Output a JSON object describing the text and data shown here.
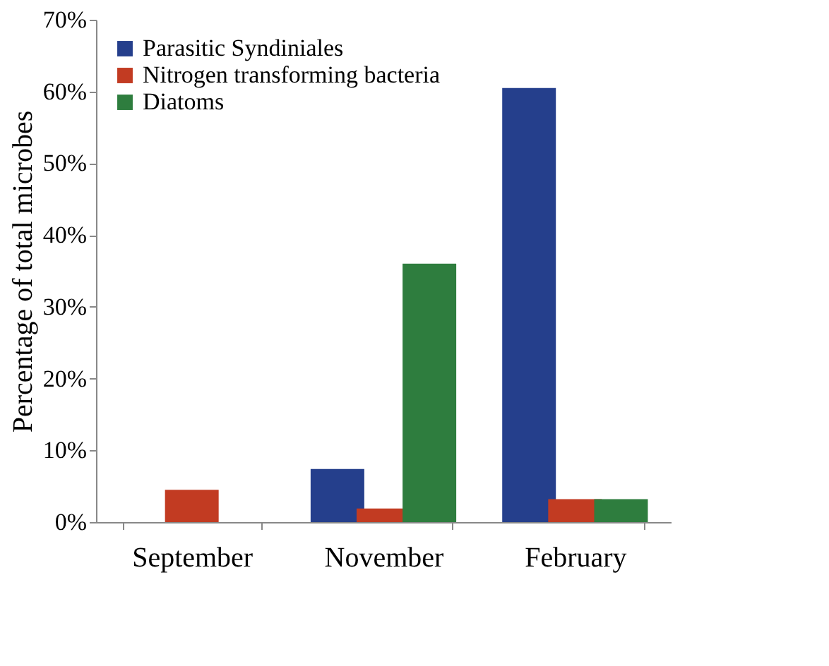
{
  "chart_data": {
    "type": "bar",
    "ylabel": "Percentage of total microbes",
    "categories": [
      "September",
      "November",
      "February"
    ],
    "series": [
      {
        "name": "Parasitic Syndiniales",
        "color": "#253f8c",
        "values": [
          0,
          7.4,
          60.5
        ]
      },
      {
        "name": "Nitrogen transforming bacteria",
        "color": "#c23b22",
        "values": [
          4.5,
          1.9,
          3.2
        ]
      },
      {
        "name": "Diatoms",
        "color": "#2e7d3e",
        "values": [
          0,
          36.0,
          3.2
        ]
      }
    ],
    "ylim": [
      0,
      70
    ],
    "yticks": [
      {
        "value": 0,
        "label": "0%"
      },
      {
        "value": 10,
        "label": "10%"
      },
      {
        "value": 20,
        "label": "20%"
      },
      {
        "value": 30,
        "label": "30%"
      },
      {
        "value": 40,
        "label": "40%"
      },
      {
        "value": 50,
        "label": "50%"
      },
      {
        "value": 60,
        "label": "60%"
      },
      {
        "value": 70,
        "label": "70%"
      }
    ],
    "grid": false,
    "legend": "top left"
  }
}
